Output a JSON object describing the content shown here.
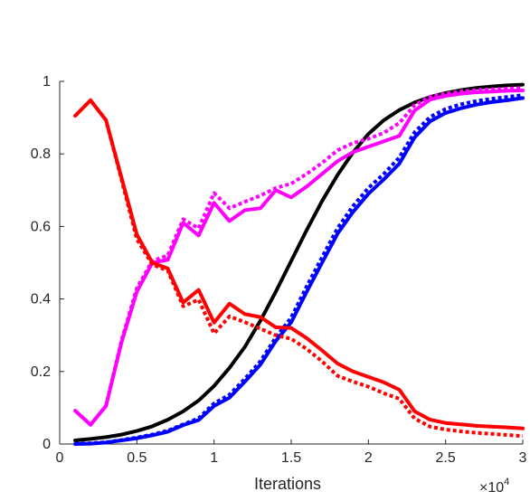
{
  "chart_data": {
    "type": "line",
    "title": "",
    "xlabel": "Iterations",
    "ylabel": "",
    "x_exponent_base": "×10",
    "x_exponent_power": "4",
    "xlim": [
      0,
      3
    ],
    "ylim": [
      0,
      1
    ],
    "grid": false,
    "legend": "none",
    "x_ticks": [
      {
        "value": 0,
        "label": "0"
      },
      {
        "value": 0.5,
        "label": "0.5"
      },
      {
        "value": 1,
        "label": "1"
      },
      {
        "value": 1.5,
        "label": "1.5"
      },
      {
        "value": 2,
        "label": "2"
      },
      {
        "value": 2.5,
        "label": "2.5"
      },
      {
        "value": 3,
        "label": "3"
      }
    ],
    "y_ticks": [
      {
        "value": 0,
        "label": "0"
      },
      {
        "value": 0.2,
        "label": "0.2"
      },
      {
        "value": 0.4,
        "label": "0.4"
      },
      {
        "value": 0.6,
        "label": "0.6"
      },
      {
        "value": 0.8,
        "label": "0.8"
      },
      {
        "value": 1,
        "label": "1"
      }
    ],
    "x": [
      0.1,
      0.2,
      0.3,
      0.4,
      0.5,
      0.6,
      0.7,
      0.8,
      0.9,
      1.0,
      1.1,
      1.2,
      1.3,
      1.4,
      1.5,
      1.6,
      1.7,
      1.8,
      1.9,
      2.0,
      2.1,
      2.2,
      2.3,
      2.4,
      2.5,
      2.6,
      2.7,
      2.8,
      2.9,
      3.0
    ],
    "series": [
      {
        "color": "#000000",
        "dash": "solid",
        "values": [
          0.01,
          0.014,
          0.019,
          0.026,
          0.036,
          0.049,
          0.067,
          0.09,
          0.12,
          0.16,
          0.21,
          0.268,
          0.34,
          0.42,
          0.505,
          0.59,
          0.67,
          0.742,
          0.804,
          0.855,
          0.893,
          0.921,
          0.942,
          0.957,
          0.968,
          0.976,
          0.982,
          0.986,
          0.989,
          0.991
        ]
      },
      {
        "color": "#0000ff",
        "dash": "solid",
        "values": [
          0.0,
          0.001,
          0.004,
          0.01,
          0.016,
          0.024,
          0.034,
          0.052,
          0.066,
          0.105,
          0.128,
          0.172,
          0.219,
          0.284,
          0.336,
          0.42,
          0.5,
          0.58,
          0.64,
          0.69,
          0.73,
          0.773,
          0.846,
          0.89,
          0.913,
          0.926,
          0.936,
          0.943,
          0.948,
          0.954
        ]
      },
      {
        "color": "#0000ff",
        "dash": "dotted",
        "values": [
          0.001,
          0.002,
          0.005,
          0.011,
          0.018,
          0.026,
          0.037,
          0.054,
          0.071,
          0.112,
          0.136,
          0.18,
          0.228,
          0.294,
          0.349,
          0.435,
          0.515,
          0.595,
          0.656,
          0.706,
          0.745,
          0.79,
          0.86,
          0.902,
          0.924,
          0.937,
          0.946,
          0.952,
          0.957,
          0.962
        ]
      },
      {
        "color": "#ff00ff",
        "dash": "solid",
        "values": [
          0.092,
          0.053,
          0.105,
          0.28,
          0.42,
          0.5,
          0.508,
          0.61,
          0.575,
          0.665,
          0.615,
          0.645,
          0.65,
          0.7,
          0.68,
          0.71,
          0.745,
          0.78,
          0.805,
          0.82,
          0.835,
          0.85,
          0.92,
          0.95,
          0.96,
          0.966,
          0.97,
          0.972,
          0.974,
          0.975
        ]
      },
      {
        "color": "#ff00ff",
        "dash": "dotted",
        "values": [
          0.092,
          0.053,
          0.105,
          0.285,
          0.43,
          0.505,
          0.52,
          0.62,
          0.595,
          0.692,
          0.65,
          0.668,
          0.685,
          0.706,
          0.718,
          0.745,
          0.775,
          0.81,
          0.83,
          0.842,
          0.858,
          0.885,
          0.935,
          0.958,
          0.966,
          0.972,
          0.976,
          0.978,
          0.98,
          0.982
        ]
      },
      {
        "color": "#ff0000",
        "dash": "solid",
        "values": [
          0.905,
          0.948,
          0.893,
          0.735,
          0.578,
          0.5,
          0.484,
          0.39,
          0.425,
          0.335,
          0.387,
          0.358,
          0.35,
          0.322,
          0.32,
          0.292,
          0.258,
          0.222,
          0.2,
          0.185,
          0.17,
          0.15,
          0.09,
          0.067,
          0.058,
          0.054,
          0.05,
          0.048,
          0.046,
          0.043
        ]
      },
      {
        "color": "#ff0000",
        "dash": "dotted",
        "values": [
          0.905,
          0.948,
          0.893,
          0.73,
          0.565,
          0.495,
          0.478,
          0.38,
          0.398,
          0.305,
          0.352,
          0.336,
          0.318,
          0.3,
          0.29,
          0.262,
          0.228,
          0.188,
          0.172,
          0.158,
          0.14,
          0.125,
          0.07,
          0.048,
          0.04,
          0.035,
          0.031,
          0.028,
          0.025,
          0.022
        ]
      }
    ]
  }
}
